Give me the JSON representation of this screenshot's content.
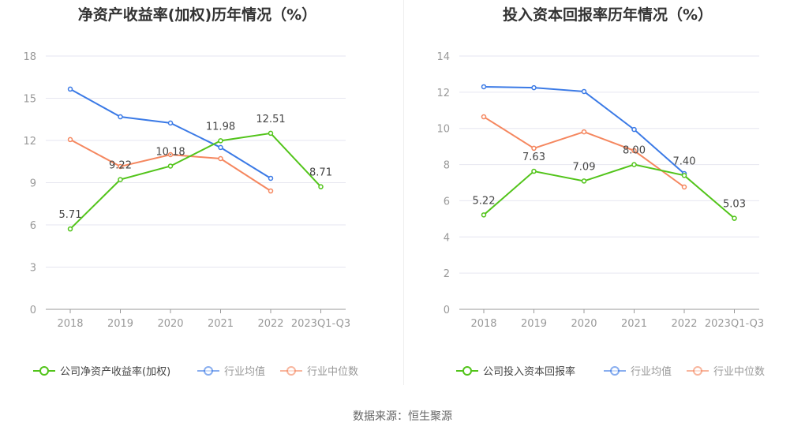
{
  "chart_data": [
    {
      "type": "line",
      "title": "净资产收益率(加权)历年情况（%）",
      "categories": [
        "2018",
        "2019",
        "2020",
        "2021",
        "2022",
        "2023Q1-Q3"
      ],
      "ylim": [
        0,
        18
      ],
      "yticks": [
        0,
        3,
        6,
        9,
        12,
        15,
        18
      ],
      "series": [
        {
          "name": "公司净资产收益率(加权)",
          "color": "#52c41a",
          "values": [
            5.71,
            9.22,
            10.18,
            11.98,
            12.51,
            8.71
          ],
          "labels": [
            "5.71",
            "9.22",
            "10.18",
            "11.98",
            "12.51",
            "8.71"
          ]
        },
        {
          "name": "行业均值",
          "color": "#3b7ae6",
          "values": [
            15.65,
            13.68,
            13.24,
            11.5,
            9.31,
            null
          ]
        },
        {
          "name": "行业中位数",
          "color": "#f5875f",
          "values": [
            12.06,
            10.15,
            10.99,
            10.71,
            8.41,
            null
          ]
        }
      ]
    },
    {
      "type": "line",
      "title": "投入资本回报率历年情况（%）",
      "categories": [
        "2018",
        "2019",
        "2020",
        "2021",
        "2022",
        "2023Q1-Q3"
      ],
      "ylim": [
        0,
        14
      ],
      "yticks": [
        0,
        2,
        4,
        6,
        8,
        10,
        12,
        14
      ],
      "series": [
        {
          "name": "公司投入资本回报率",
          "color": "#52c41a",
          "values": [
            5.22,
            7.63,
            7.09,
            8.0,
            7.4,
            5.03
          ],
          "labels": [
            "5.22",
            "7.63",
            "7.09",
            "8.00",
            "7.40",
            "5.03"
          ]
        },
        {
          "name": "行业均值",
          "color": "#3b7ae6",
          "values": [
            12.3,
            12.25,
            12.04,
            9.94,
            7.5,
            null
          ]
        },
        {
          "name": "行业中位数",
          "color": "#f5875f",
          "values": [
            10.64,
            8.9,
            9.81,
            8.77,
            6.76,
            null
          ]
        }
      ]
    }
  ],
  "source": "数据来源：恒生聚源"
}
